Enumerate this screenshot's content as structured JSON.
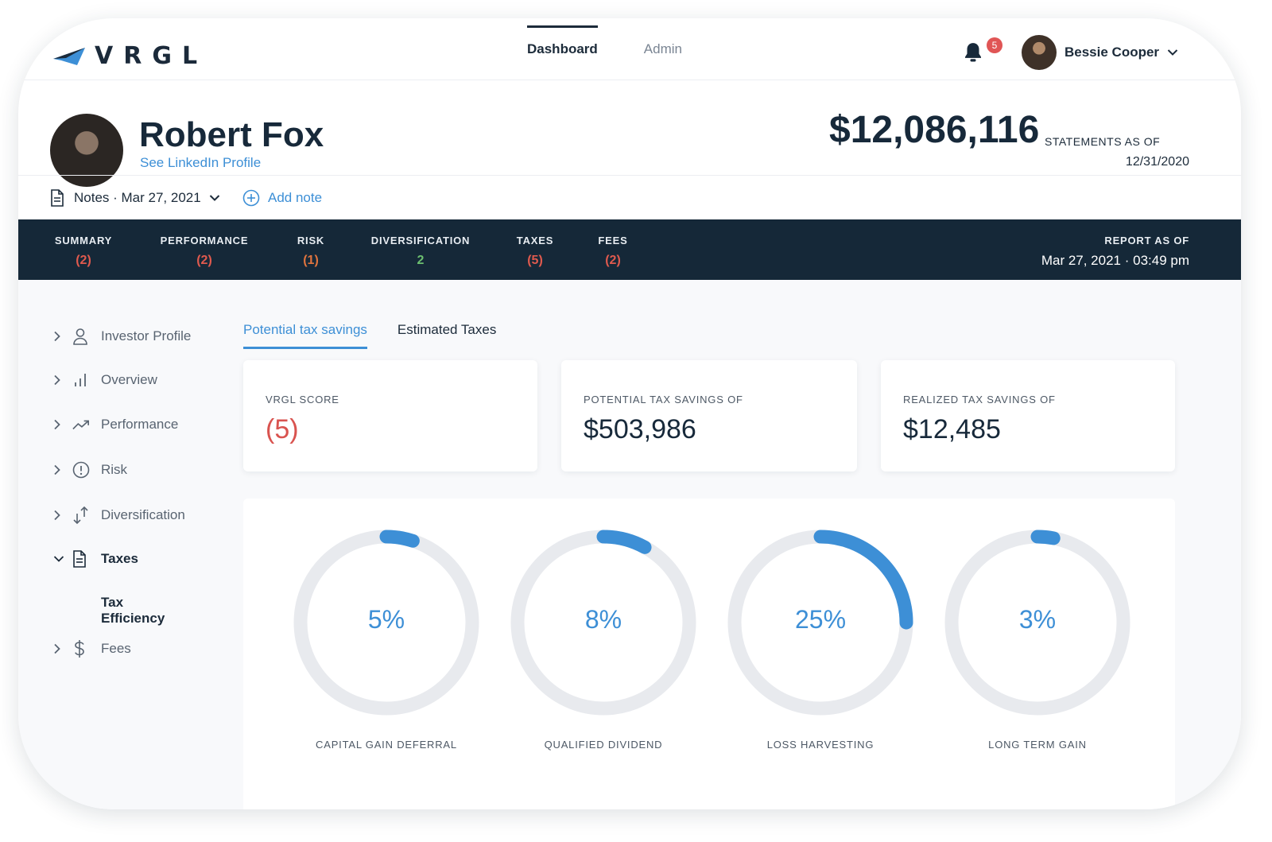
{
  "header": {
    "brand": "VRGL",
    "nav": [
      {
        "label": "Dashboard",
        "active": true
      },
      {
        "label": "Admin",
        "active": false
      }
    ],
    "notifications": "5",
    "user_name": "Bessie Cooper"
  },
  "client": {
    "name": "Robert Fox",
    "linkedin_label": "See LinkedIn Profile",
    "total_value": "$12,086,116",
    "statements_label": "STATEMENTS AS OF",
    "statements_date": "12/31/2020",
    "notes_label": "Notes · Mar 27, 2021",
    "add_note_label": "Add note"
  },
  "summary": {
    "categories": [
      {
        "label": "SUMMARY",
        "count": "(2)",
        "status_color": "#e05a4e"
      },
      {
        "label": "PERFORMANCE",
        "count": "(2)",
        "status_color": "#e05a4e"
      },
      {
        "label": "RISK",
        "count": "(1)",
        "status_color": "#e0743e"
      },
      {
        "label": "DIVERSIFICATION",
        "count": "2",
        "status_color": "#6cc070"
      },
      {
        "label": "TAXES",
        "count": "(5)",
        "status_color": "#e05a4e"
      },
      {
        "label": "FEES",
        "count": "(2)",
        "status_color": "#e05a4e"
      }
    ],
    "report_label": "REPORT AS OF",
    "report_date": "Mar 27, 2021 · 03:49 pm"
  },
  "sidebar": {
    "items": [
      {
        "label": "Investor Profile",
        "icon": "user-icon"
      },
      {
        "label": "Overview",
        "icon": "bar-chart-icon"
      },
      {
        "label": "Performance",
        "icon": "trend-up-icon"
      },
      {
        "label": "Risk",
        "icon": "alert-circle-icon"
      },
      {
        "label": "Diversification",
        "icon": "arrows-icon"
      },
      {
        "label": "Taxes",
        "icon": "document-icon",
        "expanded": true
      },
      {
        "label": "Fees",
        "icon": "dollar-icon"
      }
    ],
    "subitem": "Tax Efficiency"
  },
  "tabs": [
    {
      "label": "Potential tax savings",
      "active": true
    },
    {
      "label": "Estimated Taxes",
      "active": false
    }
  ],
  "kpis": [
    {
      "label": "VRGL SCORE",
      "value": "(5)"
    },
    {
      "label": "POTENTIAL TAX SAVINGS OF",
      "value": "$503,986"
    },
    {
      "label": "REALIZED TAX SAVINGS OF",
      "value": "$12,485"
    }
  ],
  "rings": [
    {
      "label": "CAPITAL GAIN DEFERRAL",
      "display": "5%",
      "value": 5
    },
    {
      "label": "QUALIFIED DIVIDEND",
      "display": "8%",
      "value": 8
    },
    {
      "label": "LOSS HARVESTING",
      "display": "25%",
      "value": 25
    },
    {
      "label": "LONG TERM GAIN",
      "display": "3%",
      "value": 3
    }
  ],
  "colors": {
    "accent": "#3d8fd6",
    "dark_bar": "#152838",
    "ring_track": "#e8eaee",
    "danger": "#d9534f"
  }
}
